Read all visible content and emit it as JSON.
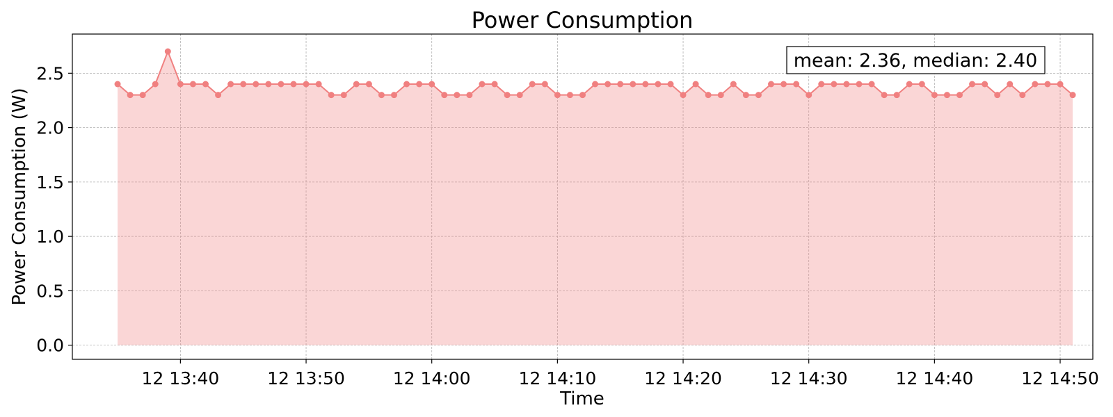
{
  "chart_data": {
    "type": "area",
    "title": "Power Consumption",
    "xlabel": "Time",
    "ylabel": "Power Consumption (W)",
    "annotation": "mean: 2.36, median: 2.40",
    "x_start": "12 13:35",
    "x_step_minutes": 1,
    "xlim_minutes": [
      -3.6,
      77.6
    ],
    "x_ticks": [
      {
        "label": "12 13:40",
        "minute": 5
      },
      {
        "label": "12 13:50",
        "minute": 15
      },
      {
        "label": "12 14:00",
        "minute": 25
      },
      {
        "label": "12 14:10",
        "minute": 35
      },
      {
        "label": "12 14:20",
        "minute": 45
      },
      {
        "label": "12 14:30",
        "minute": 55
      },
      {
        "label": "12 14:40",
        "minute": 65
      },
      {
        "label": "12 14:50",
        "minute": 75
      }
    ],
    "ylim": [
      -0.13,
      2.86
    ],
    "y_ticks": [
      {
        "label": "0.0",
        "value": 0.0
      },
      {
        "label": "0.5",
        "value": 0.5
      },
      {
        "label": "1.0",
        "value": 1.0
      },
      {
        "label": "1.5",
        "value": 1.5
      },
      {
        "label": "2.0",
        "value": 2.0
      },
      {
        "label": "2.5",
        "value": 2.5
      }
    ],
    "grid": true,
    "color": "#f08080",
    "series": [
      {
        "values": [
          2.4,
          2.3,
          2.3,
          2.4,
          2.7,
          2.4,
          2.4,
          2.4,
          2.3,
          2.4,
          2.4,
          2.4,
          2.4,
          2.4,
          2.4,
          2.4,
          2.4,
          2.3,
          2.3,
          2.4,
          2.4,
          2.3,
          2.3,
          2.4,
          2.4,
          2.4,
          2.3,
          2.3,
          2.3,
          2.4,
          2.4,
          2.3,
          2.3,
          2.4,
          2.4,
          2.3,
          2.3,
          2.3,
          2.4,
          2.4,
          2.4,
          2.4,
          2.4,
          2.4,
          2.4,
          2.3,
          2.4,
          2.3,
          2.3,
          2.4,
          2.3,
          2.3,
          2.4,
          2.4,
          2.4,
          2.3,
          2.4,
          2.4,
          2.4,
          2.4,
          2.4,
          2.3,
          2.3,
          2.4,
          2.4,
          2.3,
          2.3,
          2.3,
          2.4,
          2.4,
          2.3,
          2.4,
          2.3,
          2.4,
          2.4,
          2.4,
          2.3
        ]
      }
    ]
  }
}
